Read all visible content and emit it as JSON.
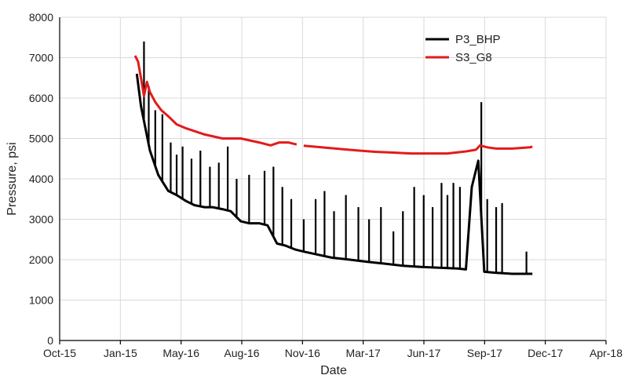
{
  "chart_data": {
    "type": "line",
    "xlabel": "Date",
    "ylabel": "Pressure, psi",
    "x_ticks": [
      "Oct-15",
      "Jan-15",
      "May-16",
      "Aug-16",
      "Nov-16",
      "Mar-17",
      "Jun-17",
      "Sep-17",
      "Dec-17",
      "Apr-18"
    ],
    "y_ticks": [
      "0",
      "1000",
      "2000",
      "3000",
      "4000",
      "5000",
      "6000",
      "7000",
      "8000"
    ],
    "ylim": [
      0,
      8000
    ],
    "grid": true,
    "legend_position": "top-right",
    "series": [
      {
        "name": "P3_BHP",
        "color": "#000000",
        "style": "dense-points",
        "x": [
          "2016-02-08",
          "2016-02-15",
          "2016-03-01",
          "2016-03-15",
          "2016-04-01",
          "2016-04-15",
          "2016-05-01",
          "2016-05-15",
          "2016-06-01",
          "2016-06-15",
          "2016-07-01",
          "2016-07-15",
          "2016-08-01",
          "2016-08-15",
          "2016-09-01",
          "2016-09-15",
          "2016-10-01",
          "2016-10-15",
          "2016-11-01",
          "2016-11-15",
          "2016-12-01",
          "2017-01-01",
          "2017-02-01",
          "2017-03-01",
          "2017-04-01",
          "2017-05-01",
          "2017-06-01",
          "2017-07-01",
          "2017-08-01",
          "2017-08-15",
          "2017-08-25",
          "2017-09-05",
          "2017-09-15",
          "2017-10-01",
          "2017-11-01",
          "2017-12-05"
        ],
        "y": [
          6600,
          5800,
          4700,
          4100,
          3700,
          3600,
          3450,
          3350,
          3300,
          3300,
          3250,
          3200,
          2950,
          2900,
          2900,
          2850,
          2400,
          2350,
          2250,
          2200,
          2150,
          2050,
          2000,
          1950,
          1900,
          1850,
          1820,
          1800,
          1780,
          1760,
          3800,
          4450,
          1700,
          1680,
          1650,
          1650
        ],
        "spikes": [
          {
            "x": "2016-02-20",
            "y": 7400
          },
          {
            "x": "2016-02-28",
            "y": 6300
          },
          {
            "x": "2016-03-10",
            "y": 5700
          },
          {
            "x": "2016-03-22",
            "y": 5600
          },
          {
            "x": "2016-04-05",
            "y": 4900
          },
          {
            "x": "2016-04-15",
            "y": 4600
          },
          {
            "x": "2016-04-25",
            "y": 4800
          },
          {
            "x": "2016-05-10",
            "y": 4500
          },
          {
            "x": "2016-05-25",
            "y": 4700
          },
          {
            "x": "2016-06-10",
            "y": 4300
          },
          {
            "x": "2016-06-25",
            "y": 4400
          },
          {
            "x": "2016-07-10",
            "y": 4800
          },
          {
            "x": "2016-07-25",
            "y": 4000
          },
          {
            "x": "2016-08-15",
            "y": 4100
          },
          {
            "x": "2016-09-10",
            "y": 4200
          },
          {
            "x": "2016-09-25",
            "y": 4300
          },
          {
            "x": "2016-10-10",
            "y": 3800
          },
          {
            "x": "2016-10-25",
            "y": 3500
          },
          {
            "x": "2016-11-15",
            "y": 3000
          },
          {
            "x": "2016-12-05",
            "y": 3500
          },
          {
            "x": "2016-12-20",
            "y": 3700
          },
          {
            "x": "2017-01-05",
            "y": 3200
          },
          {
            "x": "2017-01-25",
            "y": 3600
          },
          {
            "x": "2017-02-15",
            "y": 3300
          },
          {
            "x": "2017-03-05",
            "y": 3000
          },
          {
            "x": "2017-03-25",
            "y": 3300
          },
          {
            "x": "2017-04-15",
            "y": 2700
          },
          {
            "x": "2017-05-01",
            "y": 3200
          },
          {
            "x": "2017-05-20",
            "y": 3800
          },
          {
            "x": "2017-06-05",
            "y": 3600
          },
          {
            "x": "2017-06-20",
            "y": 3300
          },
          {
            "x": "2017-07-05",
            "y": 3900
          },
          {
            "x": "2017-07-15",
            "y": 3600
          },
          {
            "x": "2017-07-25",
            "y": 3900
          },
          {
            "x": "2017-08-05",
            "y": 3800
          },
          {
            "x": "2017-09-10",
            "y": 5900
          },
          {
            "x": "2017-09-20",
            "y": 3500
          },
          {
            "x": "2017-10-05",
            "y": 3300
          },
          {
            "x": "2017-10-15",
            "y": 3400
          },
          {
            "x": "2017-11-25",
            "y": 2200
          }
        ]
      },
      {
        "name": "S3_G8",
        "color": "#e21b1b",
        "style": "line",
        "segments": [
          {
            "x": [
              "2016-02-05",
              "2016-02-10",
              "2016-02-15",
              "2016-02-20",
              "2016-02-25",
              "2016-03-01",
              "2016-03-10",
              "2016-03-20",
              "2016-04-01",
              "2016-04-15",
              "2016-05-01",
              "2016-06-01",
              "2016-07-01",
              "2016-08-01",
              "2016-09-01",
              "2016-09-20",
              "2016-10-05",
              "2016-10-20",
              "2016-11-03"
            ],
            "y": [
              7050,
              6900,
              6500,
              6050,
              6400,
              6150,
              5900,
              5700,
              5550,
              5350,
              5250,
              5100,
              5000,
              5000,
              4900,
              4830,
              4900,
              4900,
              4850
            ]
          },
          {
            "x": [
              "2016-11-15",
              "2016-12-15",
              "2017-01-15",
              "2017-02-15",
              "2017-03-15",
              "2017-04-15",
              "2017-05-15",
              "2017-06-15",
              "2017-07-15",
              "2017-08-15",
              "2017-09-01",
              "2017-09-08",
              "2017-09-20",
              "2017-10-05",
              "2017-11-01",
              "2017-12-01",
              "2017-12-05"
            ],
            "y": [
              4820,
              4780,
              4740,
              4700,
              4670,
              4650,
              4630,
              4630,
              4630,
              4680,
              4720,
              4830,
              4780,
              4750,
              4750,
              4780,
              4800
            ]
          }
        ]
      }
    ]
  }
}
